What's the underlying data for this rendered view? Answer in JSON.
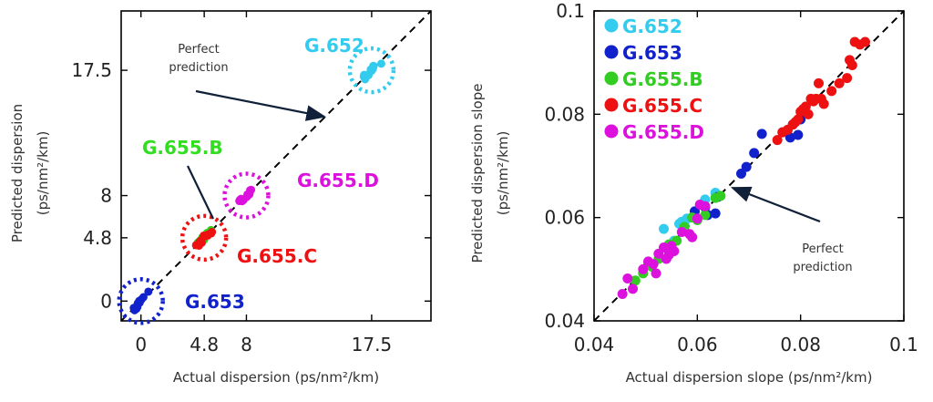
{
  "chart_data": [
    {
      "type": "scatter",
      "xlabel": "Actual dispersion (ps/nm²/km)",
      "ylabel_line1": "Predicted dispersion",
      "ylabel_line2": "(ps/nm²/km)",
      "xlim": [
        -1.5,
        22
      ],
      "ylim": [
        -1.5,
        22
      ],
      "x_ticks": [
        0,
        4.8,
        8,
        17.5
      ],
      "y_ticks": [
        0,
        4.8,
        8,
        17.5
      ],
      "x_tick_labels": [
        "0",
        "4.8",
        "8",
        "17.5"
      ],
      "y_tick_labels": [
        "0",
        "4.8",
        "8",
        "17.5"
      ],
      "reference_line": "y = x",
      "annotation": {
        "line1": "Perfect",
        "line2": "prediction"
      },
      "groups": [
        {
          "name": "G.652",
          "label": "G.652",
          "color": "#33ccee",
          "ring_color": "#33ccee",
          "center": [
            17.5,
            17.5
          ],
          "spread": 0.7
        },
        {
          "name": "G.653",
          "label": "G.653",
          "color": "#1122cc",
          "ring_color": "#1122cc",
          "center": [
            0,
            0
          ],
          "spread": 0.7
        },
        {
          "name": "G.655.B",
          "label": "G.655.B",
          "color": "#33cc22",
          "ring_color": "#33dd22",
          "center": [
            4.8,
            4.8
          ],
          "spread": 0.6
        },
        {
          "name": "G.655.C",
          "label": "G.655.C",
          "color": "#ee1111",
          "ring_color": "#ee1111",
          "center": [
            4.8,
            4.8
          ],
          "spread": 0.6
        },
        {
          "name": "G.655.D",
          "label": "G.655.D",
          "color": "#dd11dd",
          "ring_color": "#dd11dd",
          "center": [
            8,
            8
          ],
          "spread": 0.5
        }
      ]
    },
    {
      "type": "scatter",
      "xlabel": "Actual dispersion slope (ps/nm²/km)",
      "ylabel_line1": "Predicted dispersion slope",
      "ylabel_line2": "(ps/nm²/km)",
      "xlim": [
        0.04,
        0.1
      ],
      "ylim": [
        0.04,
        0.1
      ],
      "x_ticks": [
        0.04,
        0.06,
        0.08,
        0.1
      ],
      "y_ticks": [
        0.04,
        0.06,
        0.08,
        0.1
      ],
      "x_tick_labels": [
        "0.04",
        "0.06",
        "0.08",
        "0.1"
      ],
      "y_tick_labels": [
        "0.04",
        "0.06",
        "0.08",
        "0.1"
      ],
      "reference_line": "y = x",
      "annotation": {
        "line1": "Perfect",
        "line2": "prediction"
      },
      "legend": [
        "G.652",
        "G.653",
        "G.655.B",
        "G.655.C",
        "G.655.D"
      ],
      "series": [
        {
          "name": "G.652",
          "color": "#33ccee",
          "points": [
            [
              0.0535,
              0.0578
            ],
            [
              0.0555,
              0.0555
            ],
            [
              0.0565,
              0.0588
            ],
            [
              0.057,
              0.0592
            ],
            [
              0.058,
              0.0598
            ],
            [
              0.0575,
              0.0585
            ],
            [
              0.0615,
              0.0635
            ],
            [
              0.0635,
              0.0648
            ],
            [
              0.059,
              0.06
            ]
          ]
        },
        {
          "name": "G.653",
          "color": "#1122cc",
          "points": [
            [
              0.0595,
              0.0612
            ],
            [
              0.0615,
              0.062
            ],
            [
              0.062,
              0.0605
            ],
            [
              0.0635,
              0.0608
            ],
            [
              0.064,
              0.064
            ],
            [
              0.0685,
              0.0685
            ],
            [
              0.0695,
              0.0698
            ],
            [
              0.071,
              0.0725
            ],
            [
              0.0725,
              0.0762
            ],
            [
              0.0765,
              0.0765
            ],
            [
              0.078,
              0.0755
            ],
            [
              0.0795,
              0.076
            ],
            [
              0.0785,
              0.078
            ],
            [
              0.08,
              0.079
            ]
          ]
        },
        {
          "name": "G.655.B",
          "color": "#33cc22",
          "points": [
            [
              0.048,
              0.0478
            ],
            [
              0.0495,
              0.0492
            ],
            [
              0.0505,
              0.0512
            ],
            [
              0.0512,
              0.0505
            ],
            [
              0.0525,
              0.052
            ],
            [
              0.0545,
              0.0548
            ],
            [
              0.056,
              0.0555
            ],
            [
              0.0575,
              0.0582
            ],
            [
              0.059,
              0.06
            ],
            [
              0.06,
              0.0595
            ],
            [
              0.0615,
              0.0605
            ],
            [
              0.0635,
              0.0638
            ],
            [
              0.0645,
              0.0642
            ]
          ]
        },
        {
          "name": "G.655.C",
          "color": "#ee1111",
          "points": [
            [
              0.0755,
              0.075
            ],
            [
              0.0765,
              0.0765
            ],
            [
              0.0775,
              0.077
            ],
            [
              0.0785,
              0.078
            ],
            [
              0.079,
              0.0785
            ],
            [
              0.0795,
              0.079
            ],
            [
              0.08,
              0.0805
            ],
            [
              0.0805,
              0.081
            ],
            [
              0.081,
              0.0815
            ],
            [
              0.0815,
              0.08
            ],
            [
              0.082,
              0.083
            ],
            [
              0.0825,
              0.0825
            ],
            [
              0.083,
              0.083
            ],
            [
              0.084,
              0.083
            ],
            [
              0.0835,
              0.086
            ],
            [
              0.0845,
              0.082
            ],
            [
              0.086,
              0.0845
            ],
            [
              0.0875,
              0.086
            ],
            [
              0.089,
              0.087
            ],
            [
              0.0895,
              0.0905
            ],
            [
              0.09,
              0.0895
            ],
            [
              0.0905,
              0.094
            ],
            [
              0.0915,
              0.0935
            ],
            [
              0.0925,
              0.094
            ]
          ]
        },
        {
          "name": "G.655.D",
          "color": "#dd11dd",
          "points": [
            [
              0.0455,
              0.0452
            ],
            [
              0.0465,
              0.0482
            ],
            [
              0.0475,
              0.0462
            ],
            [
              0.0495,
              0.05
            ],
            [
              0.0505,
              0.0515
            ],
            [
              0.0515,
              0.051
            ],
            [
              0.052,
              0.0492
            ],
            [
              0.0525,
              0.053
            ],
            [
              0.0535,
              0.0542
            ],
            [
              0.054,
              0.052
            ],
            [
              0.0545,
              0.0528
            ],
            [
              0.055,
              0.0545
            ],
            [
              0.0555,
              0.0535
            ],
            [
              0.057,
              0.0572
            ],
            [
              0.0585,
              0.0568
            ],
            [
              0.059,
              0.0562
            ],
            [
              0.06,
              0.0598
            ],
            [
              0.0605,
              0.0625
            ],
            [
              0.0615,
              0.0622
            ]
          ]
        }
      ]
    }
  ]
}
